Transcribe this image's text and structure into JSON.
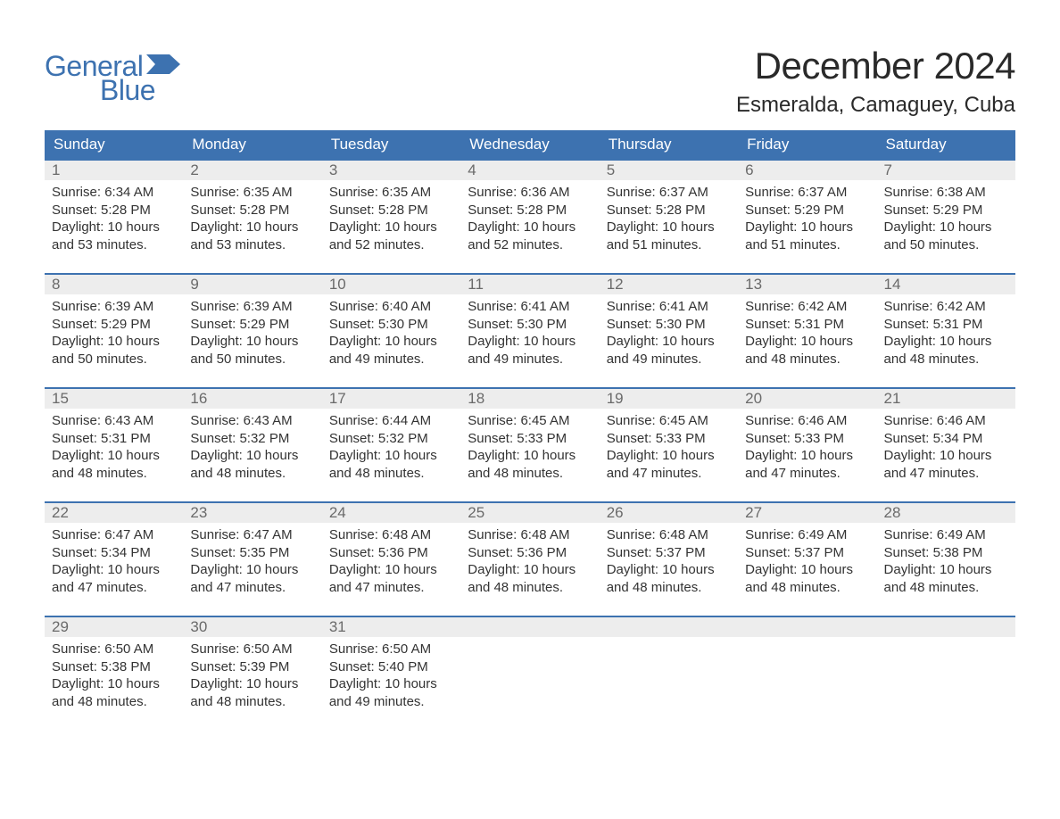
{
  "brand": {
    "word1": "General",
    "word2": "Blue",
    "color": "#3d72b0"
  },
  "title": "December 2024",
  "location": "Esmeralda, Camaguey, Cuba",
  "colors": {
    "header_bg": "#3d72b0",
    "header_text": "#ffffff",
    "daynum_bg": "#ededed",
    "daynum_border": "#3d72b0",
    "daynum_text": "#6a6a6a",
    "body_text": "#333333",
    "page_bg": "#ffffff"
  },
  "day_headers": [
    "Sunday",
    "Monday",
    "Tuesday",
    "Wednesday",
    "Thursday",
    "Friday",
    "Saturday"
  ],
  "weeks": [
    [
      {
        "n": "1",
        "sunrise": "6:34 AM",
        "sunset": "5:28 PM",
        "daylight": "10 hours and 53 minutes."
      },
      {
        "n": "2",
        "sunrise": "6:35 AM",
        "sunset": "5:28 PM",
        "daylight": "10 hours and 53 minutes."
      },
      {
        "n": "3",
        "sunrise": "6:35 AM",
        "sunset": "5:28 PM",
        "daylight": "10 hours and 52 minutes."
      },
      {
        "n": "4",
        "sunrise": "6:36 AM",
        "sunset": "5:28 PM",
        "daylight": "10 hours and 52 minutes."
      },
      {
        "n": "5",
        "sunrise": "6:37 AM",
        "sunset": "5:28 PM",
        "daylight": "10 hours and 51 minutes."
      },
      {
        "n": "6",
        "sunrise": "6:37 AM",
        "sunset": "5:29 PM",
        "daylight": "10 hours and 51 minutes."
      },
      {
        "n": "7",
        "sunrise": "6:38 AM",
        "sunset": "5:29 PM",
        "daylight": "10 hours and 50 minutes."
      }
    ],
    [
      {
        "n": "8",
        "sunrise": "6:39 AM",
        "sunset": "5:29 PM",
        "daylight": "10 hours and 50 minutes."
      },
      {
        "n": "9",
        "sunrise": "6:39 AM",
        "sunset": "5:29 PM",
        "daylight": "10 hours and 50 minutes."
      },
      {
        "n": "10",
        "sunrise": "6:40 AM",
        "sunset": "5:30 PM",
        "daylight": "10 hours and 49 minutes."
      },
      {
        "n": "11",
        "sunrise": "6:41 AM",
        "sunset": "5:30 PM",
        "daylight": "10 hours and 49 minutes."
      },
      {
        "n": "12",
        "sunrise": "6:41 AM",
        "sunset": "5:30 PM",
        "daylight": "10 hours and 49 minutes."
      },
      {
        "n": "13",
        "sunrise": "6:42 AM",
        "sunset": "5:31 PM",
        "daylight": "10 hours and 48 minutes."
      },
      {
        "n": "14",
        "sunrise": "6:42 AM",
        "sunset": "5:31 PM",
        "daylight": "10 hours and 48 minutes."
      }
    ],
    [
      {
        "n": "15",
        "sunrise": "6:43 AM",
        "sunset": "5:31 PM",
        "daylight": "10 hours and 48 minutes."
      },
      {
        "n": "16",
        "sunrise": "6:43 AM",
        "sunset": "5:32 PM",
        "daylight": "10 hours and 48 minutes."
      },
      {
        "n": "17",
        "sunrise": "6:44 AM",
        "sunset": "5:32 PM",
        "daylight": "10 hours and 48 minutes."
      },
      {
        "n": "18",
        "sunrise": "6:45 AM",
        "sunset": "5:33 PM",
        "daylight": "10 hours and 48 minutes."
      },
      {
        "n": "19",
        "sunrise": "6:45 AM",
        "sunset": "5:33 PM",
        "daylight": "10 hours and 47 minutes."
      },
      {
        "n": "20",
        "sunrise": "6:46 AM",
        "sunset": "5:33 PM",
        "daylight": "10 hours and 47 minutes."
      },
      {
        "n": "21",
        "sunrise": "6:46 AM",
        "sunset": "5:34 PM",
        "daylight": "10 hours and 47 minutes."
      }
    ],
    [
      {
        "n": "22",
        "sunrise": "6:47 AM",
        "sunset": "5:34 PM",
        "daylight": "10 hours and 47 minutes."
      },
      {
        "n": "23",
        "sunrise": "6:47 AM",
        "sunset": "5:35 PM",
        "daylight": "10 hours and 47 minutes."
      },
      {
        "n": "24",
        "sunrise": "6:48 AM",
        "sunset": "5:36 PM",
        "daylight": "10 hours and 47 minutes."
      },
      {
        "n": "25",
        "sunrise": "6:48 AM",
        "sunset": "5:36 PM",
        "daylight": "10 hours and 48 minutes."
      },
      {
        "n": "26",
        "sunrise": "6:48 AM",
        "sunset": "5:37 PM",
        "daylight": "10 hours and 48 minutes."
      },
      {
        "n": "27",
        "sunrise": "6:49 AM",
        "sunset": "5:37 PM",
        "daylight": "10 hours and 48 minutes."
      },
      {
        "n": "28",
        "sunrise": "6:49 AM",
        "sunset": "5:38 PM",
        "daylight": "10 hours and 48 minutes."
      }
    ],
    [
      {
        "n": "29",
        "sunrise": "6:50 AM",
        "sunset": "5:38 PM",
        "daylight": "10 hours and 48 minutes."
      },
      {
        "n": "30",
        "sunrise": "6:50 AM",
        "sunset": "5:39 PM",
        "daylight": "10 hours and 48 minutes."
      },
      {
        "n": "31",
        "sunrise": "6:50 AM",
        "sunset": "5:40 PM",
        "daylight": "10 hours and 49 minutes."
      },
      null,
      null,
      null,
      null
    ]
  ],
  "labels": {
    "sunrise": "Sunrise:",
    "sunset": "Sunset:",
    "daylight": "Daylight:"
  }
}
